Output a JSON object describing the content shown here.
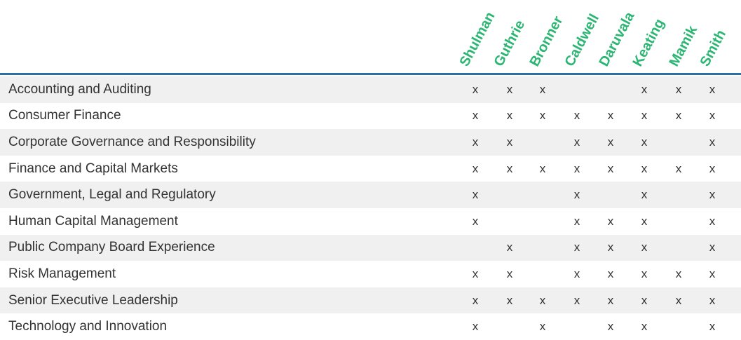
{
  "columns": [
    "Shulman",
    "Guthrie",
    "Bronner",
    "Caldwell",
    "Daruvala",
    "Keating",
    "Mamik",
    "Smith"
  ],
  "mark_symbol": "x",
  "colors": {
    "header_text": "#2bb673",
    "rule": "#2e6fa3",
    "row_shade": "#f0f0f1",
    "text": "#333333"
  },
  "rows": [
    {
      "label": "Accounting and Auditing",
      "marks": [
        true,
        true,
        true,
        false,
        false,
        true,
        true,
        true
      ]
    },
    {
      "label": "Consumer Finance",
      "marks": [
        true,
        true,
        true,
        true,
        true,
        true,
        true,
        true
      ]
    },
    {
      "label": "Corporate Governance and Responsibility",
      "marks": [
        true,
        true,
        false,
        true,
        true,
        true,
        false,
        true
      ]
    },
    {
      "label": "Finance and Capital Markets",
      "marks": [
        true,
        true,
        true,
        true,
        true,
        true,
        true,
        true
      ]
    },
    {
      "label": "Government, Legal and Regulatory",
      "marks": [
        true,
        false,
        false,
        true,
        false,
        true,
        false,
        true
      ]
    },
    {
      "label": "Human Capital Management",
      "marks": [
        true,
        false,
        false,
        true,
        true,
        true,
        false,
        true
      ]
    },
    {
      "label": "Public Company Board Experience",
      "marks": [
        false,
        true,
        false,
        true,
        true,
        true,
        false,
        true
      ]
    },
    {
      "label": "Risk Management",
      "marks": [
        true,
        true,
        false,
        true,
        true,
        true,
        true,
        true
      ]
    },
    {
      "label": "Senior Executive Leadership",
      "marks": [
        true,
        true,
        true,
        true,
        true,
        true,
        true,
        true
      ]
    },
    {
      "label": "Technology and Innovation",
      "marks": [
        true,
        false,
        true,
        false,
        true,
        true,
        false,
        true
      ]
    }
  ]
}
